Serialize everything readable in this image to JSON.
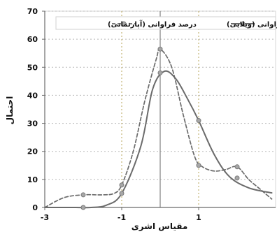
{
  "chart_data": {
    "type": "line",
    "title": "",
    "xlabel": "مقیاس اشری",
    "ylabel": "احتمال",
    "xlim": [
      -3,
      3
    ],
    "ylim": [
      0,
      70
    ],
    "x_ticks": [
      -3,
      -1,
      1
    ],
    "y_ticks": [
      0,
      10,
      20,
      30,
      40,
      50,
      60,
      70
    ],
    "grid": true,
    "legend_position": "top",
    "series": [
      {
        "name": "درصد فراوانی (ویلایی)",
        "style": "solid",
        "color": "#6b6b6b",
        "smooth_points": [
          {
            "x": -3.0,
            "y": 0.0
          },
          {
            "x": -2.6,
            "y": 0.0
          },
          {
            "x": -2.2,
            "y": 0.0
          },
          {
            "x": -1.8,
            "y": 0.0
          },
          {
            "x": -1.4,
            "y": 0.8
          },
          {
            "x": -1.0,
            "y": 5.0
          },
          {
            "x": -0.5,
            "y": 22.0
          },
          {
            "x": -0.2,
            "y": 42.0
          },
          {
            "x": 0.1,
            "y": 48.5
          },
          {
            "x": 0.4,
            "y": 46.0
          },
          {
            "x": 0.7,
            "y": 39.0
          },
          {
            "x": 1.0,
            "y": 31.0
          },
          {
            "x": 1.4,
            "y": 19.0
          },
          {
            "x": 1.8,
            "y": 11.0
          },
          {
            "x": 2.3,
            "y": 7.0
          },
          {
            "x": 2.9,
            "y": 5.2
          }
        ],
        "markers": [
          {
            "x": -2.0,
            "y": 0.0
          },
          {
            "x": -1.0,
            "y": 5.0
          },
          {
            "x": 0.0,
            "y": 48.0
          },
          {
            "x": 1.0,
            "y": 31.0
          },
          {
            "x": 2.0,
            "y": 10.5
          }
        ]
      },
      {
        "name": "درصد فراوانی (آپارتمانی)",
        "style": "dashed",
        "color": "#6b6b6b",
        "smooth_points": [
          {
            "x": -3.0,
            "y": 0.0
          },
          {
            "x": -2.5,
            "y": 3.5
          },
          {
            "x": -2.0,
            "y": 4.5
          },
          {
            "x": -1.5,
            "y": 4.5
          },
          {
            "x": -1.2,
            "y": 5.0
          },
          {
            "x": -1.0,
            "y": 8.0
          },
          {
            "x": -0.7,
            "y": 20.0
          },
          {
            "x": -0.4,
            "y": 38.0
          },
          {
            "x": -0.1,
            "y": 53.0
          },
          {
            "x": 0.0,
            "y": 56.5
          },
          {
            "x": 0.3,
            "y": 50.0
          },
          {
            "x": 0.6,
            "y": 33.0
          },
          {
            "x": 0.9,
            "y": 18.0
          },
          {
            "x": 1.1,
            "y": 14.5
          },
          {
            "x": 1.4,
            "y": 13.0
          },
          {
            "x": 1.7,
            "y": 13.5
          },
          {
            "x": 2.0,
            "y": 14.5
          },
          {
            "x": 2.3,
            "y": 10.0
          },
          {
            "x": 2.6,
            "y": 6.5
          },
          {
            "x": 2.9,
            "y": 3.0
          }
        ],
        "markers": [
          {
            "x": -2.0,
            "y": 4.5
          },
          {
            "x": -1.0,
            "y": 8.0
          },
          {
            "x": 0.0,
            "y": 56.5
          },
          {
            "x": 1.0,
            "y": 15.0
          },
          {
            "x": 2.0,
            "y": 14.5
          }
        ]
      }
    ],
    "vertical_reference_line": {
      "x": 0.0,
      "color": "#8a8a8a",
      "style": "solid"
    },
    "colors": {
      "major_grid_y": "#b9b9b9",
      "major_grid_x": "#b7a55a",
      "axis": "#6b6b6b",
      "text": "#111111"
    }
  }
}
